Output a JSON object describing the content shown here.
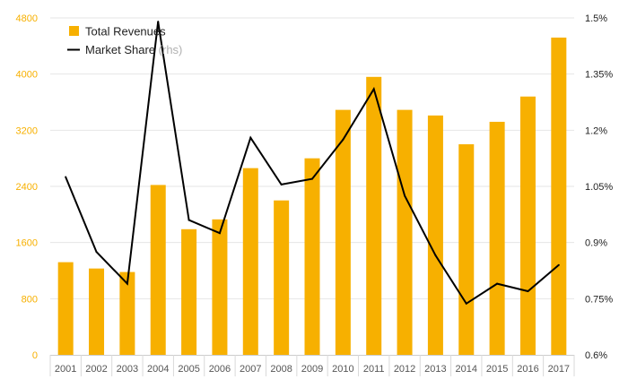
{
  "chart_data": {
    "type": "bar",
    "categories": [
      "2001",
      "2002",
      "2003",
      "2004",
      "2005",
      "2006",
      "2007",
      "2008",
      "2009",
      "2010",
      "2011",
      "2012",
      "2013",
      "2014",
      "2015",
      "2016",
      "2017"
    ],
    "series": [
      {
        "name": "Total Revenues",
        "type": "bar",
        "axis": "left",
        "color": "#F7B000",
        "values": [
          1320,
          1230,
          1180,
          2420,
          1790,
          1930,
          2660,
          2200,
          2800,
          3490,
          3960,
          3490,
          3410,
          3000,
          3320,
          3680,
          4520
        ]
      },
      {
        "name": "Market Share",
        "name_suffix": " (rhs)",
        "type": "line",
        "axis": "right",
        "color": "#000000",
        "values": [
          1.075,
          0.875,
          0.79,
          1.49,
          0.96,
          0.925,
          1.18,
          1.055,
          1.07,
          1.175,
          1.31,
          1.025,
          0.866,
          0.737,
          0.79,
          0.77,
          0.84
        ]
      }
    ],
    "y_left": {
      "ylim": [
        0,
        4800
      ],
      "ticks": [
        "0",
        "800",
        "1600",
        "2400",
        "3200",
        "4000",
        "4800"
      ],
      "color": "#F7B000"
    },
    "y_right": {
      "ylim": [
        0.6,
        1.5
      ],
      "ticks": [
        "0.6%",
        "0.75%",
        "0.9%",
        "1.05%",
        "1.2%",
        "1.35%",
        "1.5%"
      ]
    },
    "grid": true,
    "legend": {
      "position": "top-left",
      "items": [
        {
          "label": "Total Revenues",
          "symbol": "square",
          "color": "#F7B000"
        },
        {
          "label": "Market Share",
          "label_suffix": " (rhs)",
          "symbol": "line",
          "color": "#000000"
        }
      ]
    },
    "title": "",
    "xlabel": "",
    "ylabel": ""
  }
}
